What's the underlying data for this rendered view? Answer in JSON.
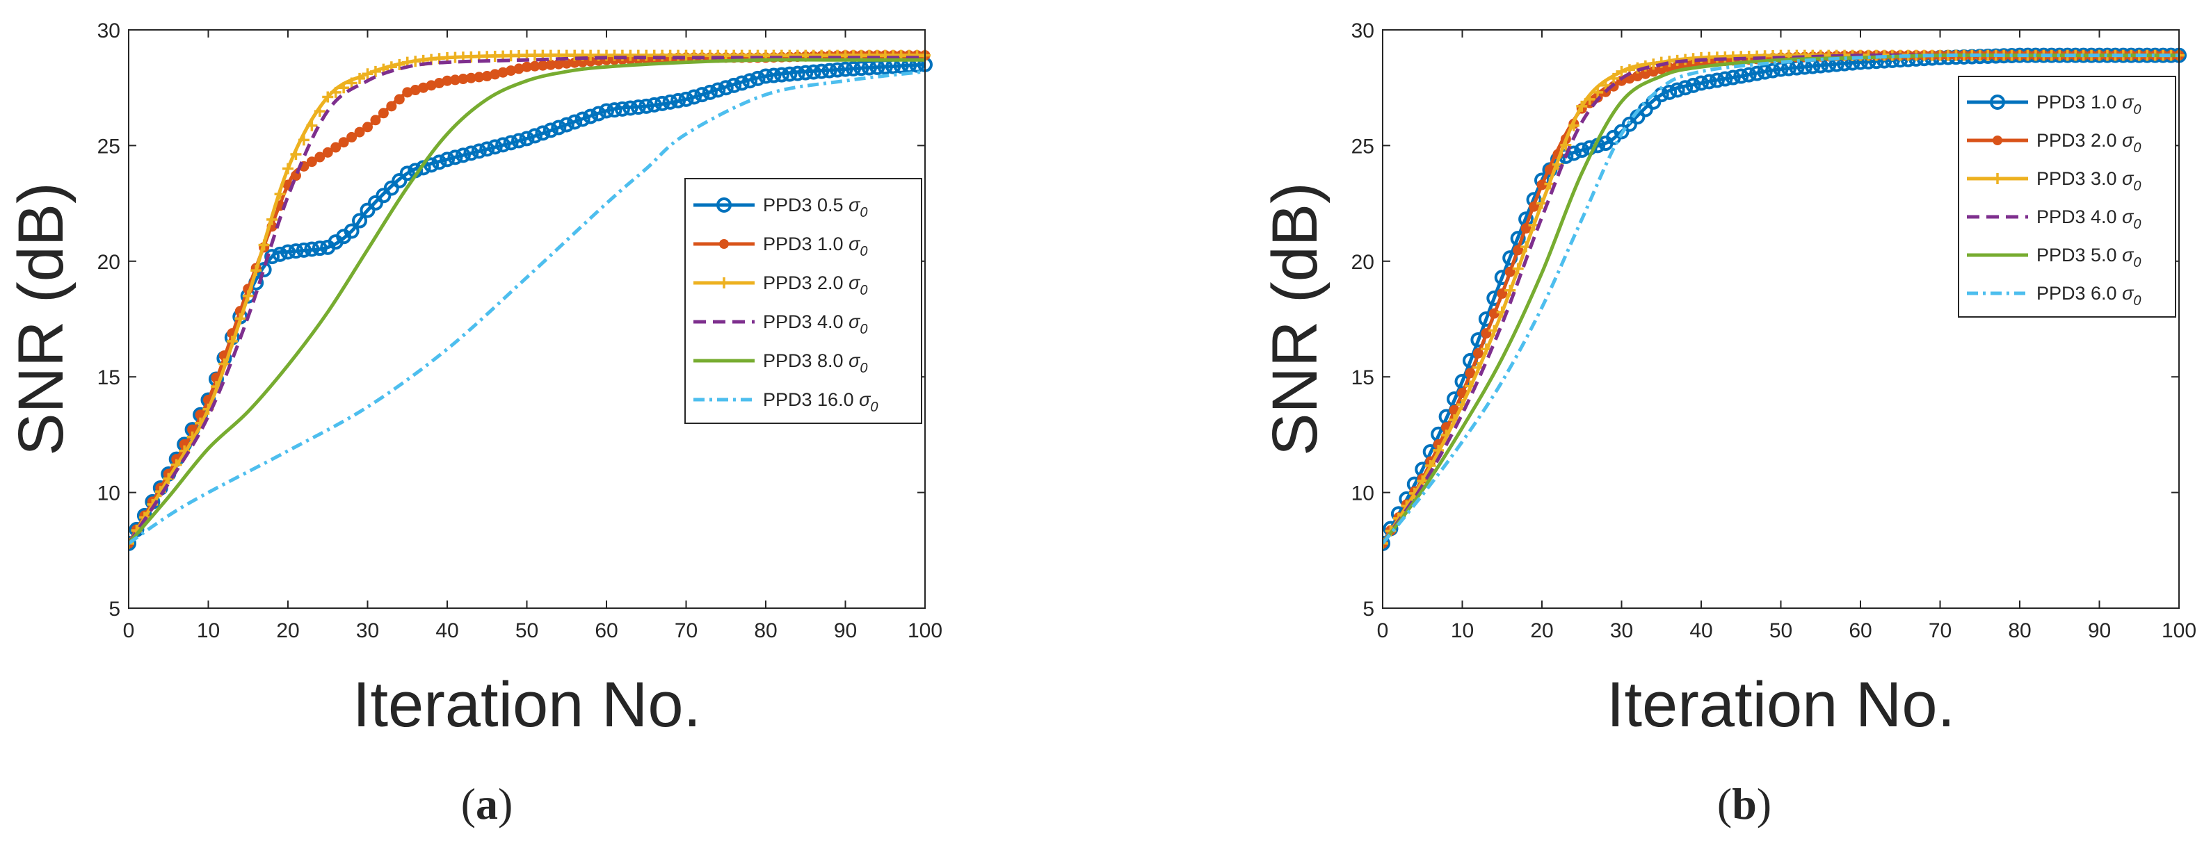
{
  "figure": {
    "caption_labels": [
      "(a)",
      "(b)"
    ]
  },
  "chart_data": [
    {
      "type": "line",
      "panel": "a",
      "xlabel": "Iteration    No.",
      "ylabel": "SNR    (dB)",
      "xlim": [
        0,
        100
      ],
      "ylim": [
        5,
        30
      ],
      "xticks": [
        0,
        10,
        20,
        30,
        40,
        50,
        60,
        70,
        80,
        90,
        100
      ],
      "yticks": [
        5,
        10,
        15,
        20,
        25,
        30
      ],
      "legend_position": "right",
      "series": [
        {
          "name": "PPD3 0.5",
          "sigma": "σ",
          "sub": "0",
          "color": "#0072BD",
          "style": "circle",
          "x": [
            0,
            5,
            10,
            15,
            18,
            20,
            25,
            28,
            30,
            35,
            40,
            50,
            60,
            65,
            70,
            80,
            90,
            100
          ],
          "y": [
            7.8,
            10.8,
            14.0,
            18.5,
            20.2,
            20.4,
            20.6,
            21.3,
            22.2,
            23.8,
            24.4,
            25.3,
            26.5,
            26.7,
            27.0,
            28.0,
            28.3,
            28.5
          ]
        },
        {
          "name": "PPD3 1.0",
          "sigma": "σ",
          "sub": "0",
          "color": "#D95319",
          "style": "dot",
          "x": [
            0,
            5,
            10,
            15,
            20,
            22,
            25,
            30,
            35,
            40,
            45,
            50,
            60,
            70,
            80,
            90,
            100
          ],
          "y": [
            7.8,
            10.8,
            14.0,
            18.8,
            23.3,
            24.1,
            24.7,
            25.8,
            27.3,
            27.8,
            28.0,
            28.4,
            28.7,
            28.8,
            28.8,
            28.9,
            28.9
          ]
        },
        {
          "name": "PPD3 2.0",
          "sigma": "σ",
          "sub": "0",
          "color": "#EDB120",
          "style": "plus",
          "x": [
            0,
            5,
            10,
            15,
            20,
            25,
            30,
            35,
            40,
            50,
            60,
            70,
            80,
            90,
            100
          ],
          "y": [
            7.8,
            10.6,
            13.6,
            18.5,
            24.0,
            27.1,
            28.1,
            28.6,
            28.8,
            28.9,
            28.9,
            28.9,
            28.9,
            28.9,
            28.9
          ]
        },
        {
          "name": "PPD3 4.0",
          "sigma": "σ",
          "sub": "0",
          "color": "#7E2F8E",
          "style": "dash",
          "x": [
            0,
            5,
            10,
            15,
            20,
            25,
            30,
            35,
            40,
            50,
            60,
            70,
            80,
            90,
            100
          ],
          "y": [
            7.8,
            10.4,
            13.3,
            17.6,
            22.8,
            26.5,
            27.8,
            28.4,
            28.6,
            28.7,
            28.8,
            28.8,
            28.8,
            28.8,
            28.8
          ]
        },
        {
          "name": "PPD3 8.0",
          "sigma": "σ",
          "sub": "0",
          "color": "#77AC30",
          "style": "solid",
          "x": [
            0,
            5,
            10,
            15,
            20,
            25,
            30,
            35,
            40,
            45,
            50,
            55,
            60,
            70,
            80,
            90,
            100
          ],
          "y": [
            7.8,
            9.8,
            11.9,
            13.5,
            15.5,
            17.8,
            20.5,
            23.2,
            25.5,
            27.0,
            27.8,
            28.2,
            28.4,
            28.6,
            28.7,
            28.7,
            28.7
          ]
        },
        {
          "name": "PPD3 16.0",
          "sigma": "σ",
          "sub": "0",
          "color": "#4DBEEE",
          "style": "dashdot",
          "x": [
            0,
            5,
            10,
            20,
            30,
            40,
            50,
            60,
            65,
            70,
            80,
            90,
            100
          ],
          "y": [
            7.8,
            9.0,
            10.0,
            11.8,
            13.7,
            16.2,
            19.3,
            22.5,
            24.0,
            25.5,
            27.2,
            27.8,
            28.2
          ]
        }
      ]
    },
    {
      "type": "line",
      "panel": "b",
      "xlabel": "Iteration    No.",
      "ylabel": "SNR    (dB)",
      "xlim": [
        0,
        100
      ],
      "ylim": [
        5,
        30
      ],
      "xticks": [
        0,
        10,
        20,
        30,
        40,
        50,
        60,
        70,
        80,
        90,
        100
      ],
      "yticks": [
        5,
        10,
        15,
        20,
        25,
        30
      ],
      "legend_position": "top-right",
      "series": [
        {
          "name": "PPD3 1.0",
          "sigma": "σ",
          "sub": "0",
          "color": "#0072BD",
          "style": "circle",
          "x": [
            0,
            5,
            10,
            15,
            20,
            22,
            25,
            28,
            30,
            35,
            40,
            45,
            50,
            60,
            70,
            80,
            90,
            100
          ],
          "y": [
            7.8,
            11.0,
            14.8,
            19.3,
            23.5,
            24.4,
            24.8,
            25.1,
            25.6,
            27.2,
            27.7,
            28.0,
            28.3,
            28.6,
            28.8,
            28.9,
            28.9,
            28.9
          ]
        },
        {
          "name": "PPD3 2.0",
          "sigma": "σ",
          "sub": "0",
          "color": "#D95319",
          "style": "dot",
          "x": [
            0,
            5,
            10,
            15,
            20,
            25,
            30,
            35,
            40,
            50,
            60,
            70,
            80,
            90,
            100
          ],
          "y": [
            7.8,
            10.6,
            14.3,
            18.6,
            23.3,
            26.6,
            27.8,
            28.3,
            28.6,
            28.8,
            28.9,
            28.9,
            28.9,
            28.9,
            28.9
          ]
        },
        {
          "name": "PPD3 3.0",
          "sigma": "σ",
          "sub": "0",
          "color": "#EDB120",
          "style": "plus",
          "x": [
            0,
            5,
            10,
            15,
            20,
            25,
            30,
            35,
            40,
            50,
            60,
            70,
            80,
            90,
            100
          ],
          "y": [
            7.8,
            10.5,
            13.8,
            17.8,
            22.5,
            26.7,
            28.2,
            28.6,
            28.8,
            28.9,
            28.9,
            28.9,
            28.9,
            28.9,
            28.9
          ]
        },
        {
          "name": "PPD3 4.0",
          "sigma": "σ",
          "sub": "0",
          "color": "#7E2F8E",
          "style": "dash",
          "x": [
            0,
            5,
            10,
            15,
            20,
            25,
            30,
            35,
            40,
            50,
            60,
            70,
            80,
            90,
            100
          ],
          "y": [
            7.8,
            10.3,
            13.4,
            17.3,
            21.9,
            26.0,
            27.9,
            28.5,
            28.7,
            28.8,
            28.9,
            28.9,
            28.9,
            28.9,
            28.9
          ]
        },
        {
          "name": "PPD3 5.0",
          "sigma": "σ",
          "sub": "0",
          "color": "#77AC30",
          "style": "solid",
          "x": [
            0,
            5,
            10,
            15,
            20,
            25,
            30,
            35,
            40,
            50,
            60,
            70,
            80,
            90,
            100
          ],
          "y": [
            7.8,
            10.1,
            12.8,
            15.8,
            19.5,
            23.8,
            26.9,
            28.0,
            28.4,
            28.7,
            28.8,
            28.9,
            28.9,
            28.9,
            28.9
          ]
        },
        {
          "name": "PPD3 6.0",
          "sigma": "σ",
          "sub": "0",
          "color": "#4DBEEE",
          "style": "dashdot",
          "x": [
            0,
            5,
            10,
            15,
            20,
            25,
            30,
            35,
            40,
            50,
            60,
            70,
            80,
            90,
            100
          ],
          "y": [
            7.8,
            9.9,
            12.2,
            14.8,
            18.0,
            21.8,
            25.5,
            27.5,
            28.2,
            28.6,
            28.8,
            28.9,
            28.9,
            28.9,
            28.9
          ]
        }
      ]
    }
  ]
}
